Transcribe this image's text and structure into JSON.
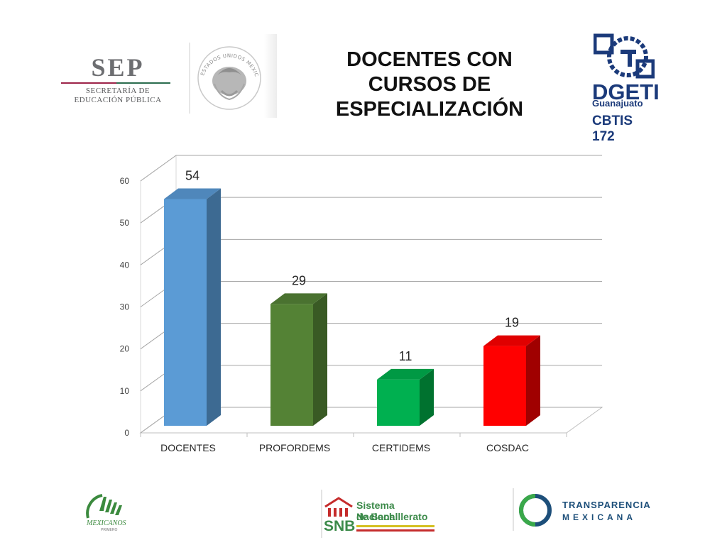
{
  "header": {
    "title_lines": [
      "DOCENTES CON",
      "CURSOS DE",
      "ESPECIALIZACIÓN"
    ],
    "sep_logo": {
      "wordmark": "SEP",
      "subtitle_lines": [
        "SECRETARÍA DE",
        "EDUCACIÓN PÚBLICA"
      ]
    },
    "seal": {
      "icon": "mexican-coat-of-arms-icon",
      "text": "ESTADOS UNIDOS MEXICANOS"
    },
    "dgeti_logo": {
      "name": "DGETI",
      "state": "Guanajuato",
      "school": "CBTIS 172"
    }
  },
  "chart_data": {
    "type": "bar",
    "style": "3d",
    "categories": [
      "DOCENTES",
      "PROFORDEMS",
      "CERTIDEMS",
      "COSDAC"
    ],
    "values": [
      54,
      29,
      11,
      19
    ],
    "data_labels": [
      "54",
      "29",
      "11",
      "19"
    ],
    "colors": [
      "#5b9bd5",
      "#548235",
      "#00b050",
      "#ff0000"
    ],
    "side_colors": [
      "#3d6a92",
      "#395a24",
      "#00722f",
      "#a00000"
    ],
    "top_colors": [
      "#4f87bb",
      "#4a7230",
      "#009944",
      "#e00000"
    ],
    "yticks": [
      "0",
      "10",
      "20",
      "30",
      "40",
      "50",
      "60"
    ],
    "ylim": [
      0,
      60
    ],
    "grid": true,
    "legend": false,
    "title": "",
    "xlabel": "",
    "ylabel": ""
  },
  "footer": {
    "mexicanos_logo": {
      "text": "MEXICANOS",
      "subtext": "PRIMERO"
    },
    "snb_logo": {
      "line1": "Sistema Nacional",
      "line2": "de Bachillerato",
      "abbr": "SNB"
    },
    "transparencia_logo": {
      "line1": "TRANSPARENCIA",
      "line2": "MEXICANA"
    }
  }
}
